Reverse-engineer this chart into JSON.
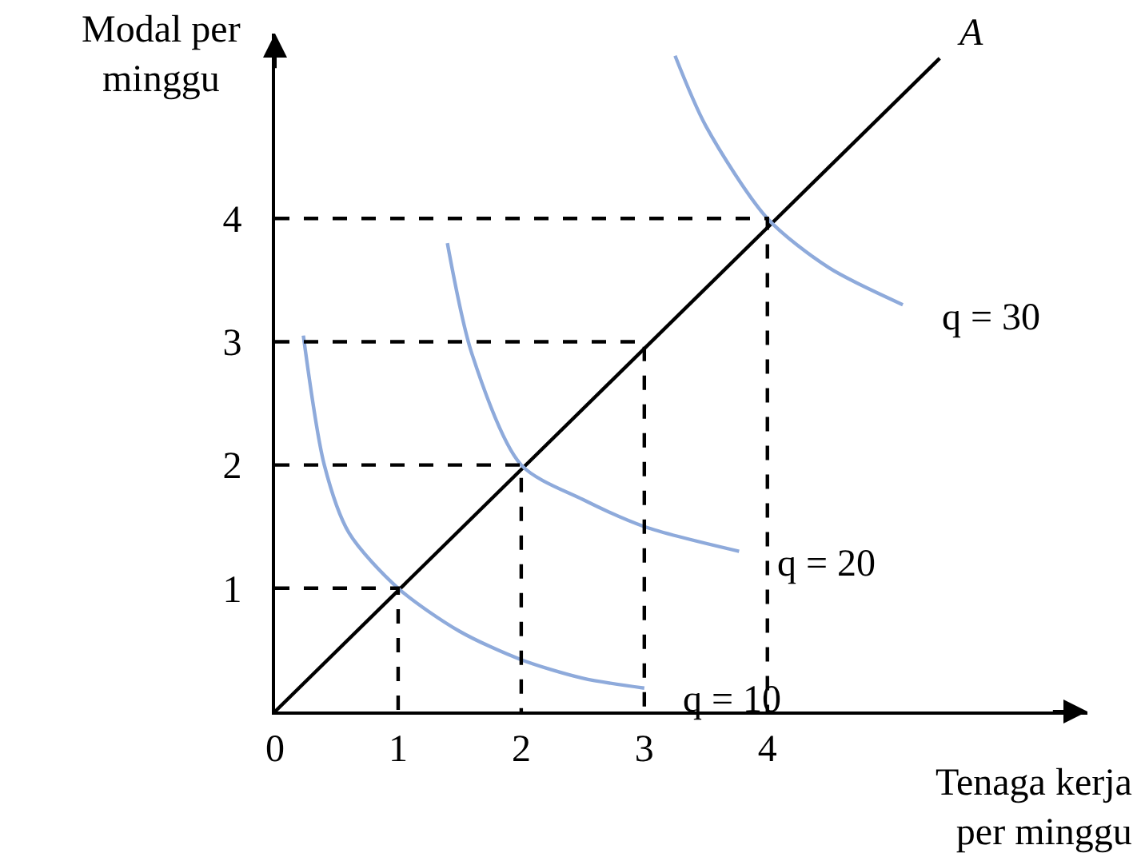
{
  "chart_data": {
    "type": "line",
    "xlabel": "Tenaga kerja\nper minggu",
    "ylabel": "Modal per\nminggu",
    "xlim": [
      0,
      6.6
    ],
    "ylim": [
      0,
      5.5
    ],
    "xticks": [
      0,
      1,
      2,
      3,
      4
    ],
    "yticks": [
      1,
      2,
      3,
      4
    ],
    "legend": false,
    "marker": "none",
    "series": [
      {
        "name": "A",
        "color": "#000000",
        "x": [
          0,
          5.4
        ],
        "values": [
          0,
          5.3
        ]
      },
      {
        "name": "q = 10",
        "color": "#8eaadb",
        "x": [
          0.23,
          0.4,
          0.6,
          1,
          1.5,
          2,
          2.5,
          3
        ],
        "values": [
          3.05,
          2.0,
          1.45,
          1,
          0.65,
          0.42,
          0.27,
          0.19
        ]
      },
      {
        "name": "q = 20",
        "color": "#8eaadb",
        "x": [
          1.4,
          1.6,
          2,
          2.5,
          3,
          3.77
        ],
        "values": [
          3.8,
          2.9,
          2,
          1.72,
          1.5,
          1.3
        ]
      },
      {
        "name": "q = 30",
        "color": "#8eaadb",
        "x": [
          3.25,
          3.5,
          4,
          4.5,
          5.1
        ],
        "values": [
          5.32,
          4.75,
          4,
          3.6,
          3.3
        ]
      },
      {
        "color": "#000000",
        "line_style": "dashed",
        "x": [
          0,
          1,
          1
        ],
        "values": [
          1,
          1,
          0
        ]
      },
      {
        "color": "#000000",
        "line_style": "dashed",
        "x": [
          0,
          2,
          2
        ],
        "values": [
          2,
          2,
          0
        ]
      },
      {
        "color": "#000000",
        "line_style": "dashed",
        "x": [
          0,
          3,
          3
        ],
        "values": [
          3,
          3,
          0
        ]
      },
      {
        "color": "#000000",
        "line_style": "dashed",
        "x": [
          0,
          4,
          4
        ],
        "values": [
          4,
          4,
          0
        ]
      }
    ]
  }
}
